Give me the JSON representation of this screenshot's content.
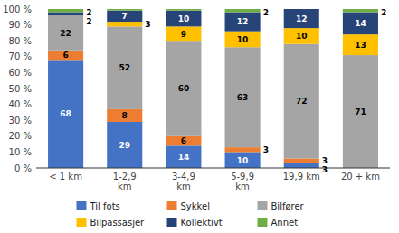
{
  "chart_data": {
    "type": "bar",
    "stacked": true,
    "data_labels": true,
    "grid": false,
    "legend": "bottom",
    "categories": [
      "< 1 km",
      "1-2,9\nkm",
      "3-4,9\nkm",
      "5-9,9\nkm",
      "19,9 km",
      "20 + km"
    ],
    "series": [
      {
        "name": "Til fots",
        "color": "#4472C4",
        "values": [
          68,
          29,
          14,
          10,
          3,
          0
        ],
        "value_labels": [
          "68",
          "29",
          "14",
          "10",
          "3",
          null
        ]
      },
      {
        "name": "Sykkel",
        "color": "#ED7D31",
        "values": [
          6,
          8,
          6,
          3,
          3,
          0
        ],
        "value_labels": [
          "6",
          "8",
          "6",
          "3",
          "3",
          null
        ]
      },
      {
        "name": "Bilfører",
        "color": "#A5A5A5",
        "values": [
          22,
          52,
          60,
          63,
          72,
          71
        ],
        "value_labels": [
          "22",
          "52",
          "60",
          "63",
          "72",
          "71"
        ]
      },
      {
        "name": "Bilpassasjer",
        "color": "#FFC000",
        "values": [
          0,
          3,
          9,
          10,
          10,
          13
        ],
        "value_labels": [
          null,
          "3",
          "9",
          "10",
          "10",
          "13"
        ]
      },
      {
        "name": "Kollektivt",
        "color": "#264478",
        "values": [
          2,
          7,
          10,
          12,
          12,
          14
        ],
        "value_labels": [
          "2",
          "7",
          "10",
          "12",
          "12",
          "14"
        ]
      },
      {
        "name": "Annet",
        "color": "#70AD47",
        "values": [
          2,
          1,
          1,
          2,
          0,
          2
        ],
        "value_labels": [
          "2",
          null,
          null,
          "2",
          null,
          "2"
        ]
      }
    ],
    "ylim": [
      0,
      100
    ],
    "yticks": [
      {
        "value": 0,
        "label": "0 %"
      },
      {
        "value": 10,
        "label": "10 %"
      },
      {
        "value": 20,
        "label": "20 %"
      },
      {
        "value": 30,
        "label": "30 %"
      },
      {
        "value": 40,
        "label": "40 %"
      },
      {
        "value": 50,
        "label": "50 %"
      },
      {
        "value": 60,
        "label": "60 %"
      },
      {
        "value": 70,
        "label": "70 %"
      },
      {
        "value": 80,
        "label": "80 %"
      },
      {
        "value": 90,
        "label": "90 %"
      },
      {
        "value": 100,
        "label": "100 %"
      }
    ]
  }
}
